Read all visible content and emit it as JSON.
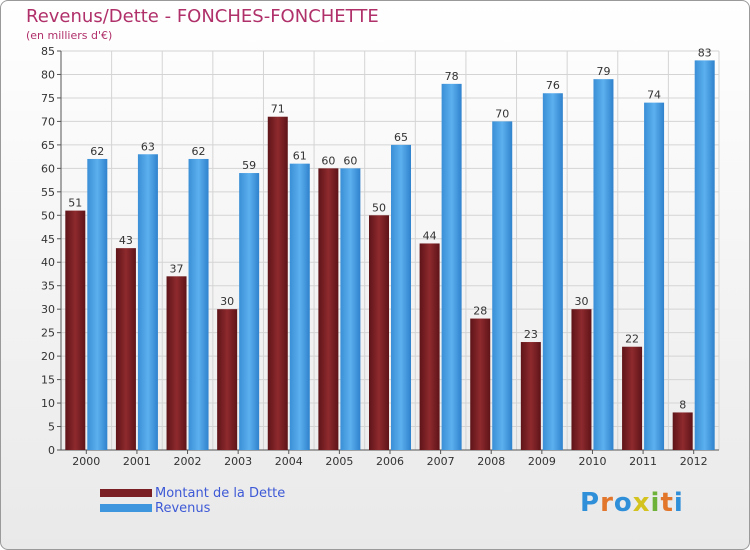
{
  "chart_data": {
    "type": "bar",
    "title": "Revenus/Dette - FONCHES-FONCHETTE",
    "subtitle": "(en milliers d'€)",
    "categories": [
      "2000",
      "2001",
      "2002",
      "2003",
      "2004",
      "2005",
      "2006",
      "2007",
      "2008",
      "2009",
      "2010",
      "2011",
      "2012"
    ],
    "series": [
      {
        "name": "Montant de la Dette",
        "color": "#7a1f24",
        "values": [
          51,
          43,
          37,
          30,
          71,
          60,
          50,
          44,
          28,
          23,
          30,
          22,
          8
        ]
      },
      {
        "name": "Revenus",
        "color": "#3d96de",
        "values": [
          62,
          63,
          62,
          59,
          61,
          60,
          65,
          78,
          70,
          76,
          79,
          74,
          83
        ]
      }
    ],
    "ylim": [
      0,
      85
    ],
    "yticks": [
      0,
      5,
      10,
      15,
      20,
      25,
      30,
      35,
      40,
      45,
      50,
      55,
      60,
      65,
      70,
      75,
      80,
      85
    ],
    "grid": true,
    "legend_placement": "bottom-left"
  },
  "logo": {
    "text": "Proxiti",
    "colors": [
      "#2f8fd8",
      "#e2762b",
      "#2f8fd8",
      "#d4c21e",
      "#6fb23a",
      "#e2762b",
      "#2f8fd8"
    ]
  }
}
